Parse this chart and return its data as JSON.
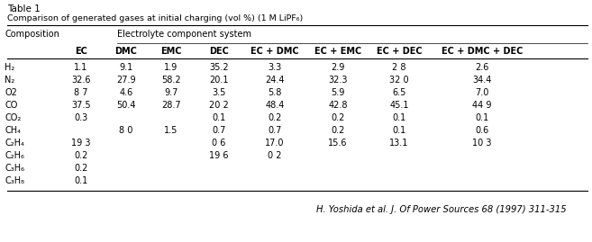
{
  "table_title": "Table 1",
  "table_subtitle": "Comparison of generated gases at initial charging (vol %) (1 M LiPF₆)",
  "header_group_label": "Electrolyte component system",
  "col_headers": [
    "EC",
    "DMC",
    "EMC",
    "DEC",
    "EC + DMC",
    "EC + EMC",
    "EC + DEC",
    "EC + DMC + DEC"
  ],
  "rows": [
    [
      "H₂",
      "1.1",
      "9.1",
      "1.9",
      "35.2",
      "3.3",
      "2.9",
      "2 8",
      "2.6"
    ],
    [
      "N₂",
      "32.6",
      "27.9",
      "58.2",
      "20.1",
      "24.4",
      "32.3",
      "32 0",
      "34.4"
    ],
    [
      "O2",
      "8 7",
      "4.6",
      "9.7",
      "3.5",
      "5.8",
      "5.9",
      "6.5",
      "7.0"
    ],
    [
      "CO",
      "37.5",
      "50.4",
      "28.7",
      "20 2",
      "48.4",
      "42.8",
      "45.1",
      "44 9"
    ],
    [
      "CO₂",
      "0.3",
      "",
      "",
      "0.1",
      "0.2",
      "0.2",
      "0.1",
      "0.1"
    ],
    [
      "CH₄",
      "",
      "8 0",
      "1.5",
      "0.7",
      "0.7",
      "0.2",
      "0.1",
      "0.6"
    ],
    [
      "C₂H₄",
      "19 3",
      "",
      "",
      "0 6",
      "17.0",
      "15.6",
      "13.1",
      "10 3"
    ],
    [
      "C₂H₆",
      "0.2",
      "",
      "",
      "19 6",
      "0 2",
      "",
      "",
      ""
    ],
    [
      "C₃H₆",
      "0.2",
      "",
      "",
      "",
      "",
      "",
      "",
      ""
    ],
    [
      "C₃H₈",
      "0.1",
      "",
      "",
      "",
      "",
      "",
      "",
      ""
    ]
  ],
  "footer": "H. Yoshida et al. J. Of Power Sources 68 (1997) 311-315",
  "background_color": "#ffffff",
  "text_color": "#000000",
  "line_color": "#000000"
}
